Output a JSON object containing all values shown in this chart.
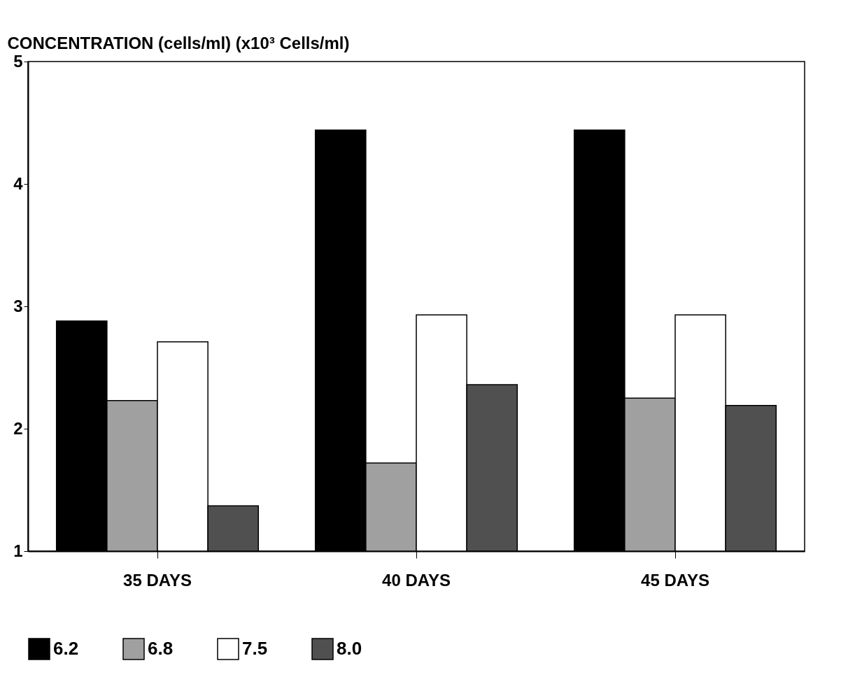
{
  "chart_data": {
    "type": "bar",
    "ylabel": "CONCENTRATION (cells/ml)    (x10³ Cells/ml)",
    "categories": [
      "35 DAYS",
      "40 DAYS",
      "45 DAYS"
    ],
    "series": [
      {
        "name": "6.2",
        "color": "#000000",
        "values": [
          2.88,
          4.44,
          4.44
        ]
      },
      {
        "name": "6.8",
        "color": "#a0a0a0",
        "values": [
          2.23,
          1.72,
          2.25
        ]
      },
      {
        "name": "7.5",
        "color": "#ffffff",
        "values": [
          2.71,
          2.93,
          2.93
        ]
      },
      {
        "name": "8.0",
        "color": "#505050",
        "values": [
          1.37,
          2.36,
          2.19
        ]
      }
    ],
    "ylim": [
      1,
      5
    ],
    "yticks": [
      1,
      2,
      3,
      4,
      5
    ],
    "grid": false,
    "legend": "bottom"
  }
}
